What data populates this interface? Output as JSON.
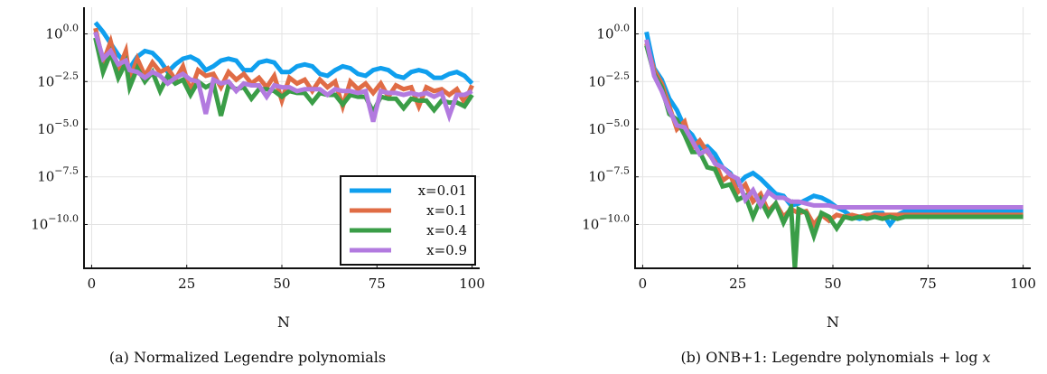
{
  "colors": {
    "x=0.01": "#0f9fee",
    "x=0.1": "#e06c45",
    "x=0.4": "#3a9d47",
    "x=0.9": "#b27adf",
    "grid": "#e3e3e3",
    "axis": "#111111"
  },
  "captions": {
    "a": "(a) Normalized Legendre polynomials",
    "b": "(b) ONB+1: Legendre polynomials + log x"
  },
  "chart_data": [
    {
      "type": "line",
      "panel": "a",
      "xlabel": "N",
      "ylabel": "",
      "yscale": "log10",
      "xlim": [
        0,
        100
      ],
      "ylim": [
        -12.3,
        1.4
      ],
      "x_ticks": [
        0,
        25,
        50,
        75,
        100
      ],
      "y_ticks": [
        {
          "base": "10",
          "exp": "0.0",
          "value": 0.0
        },
        {
          "base": "10",
          "exp": "−2.5",
          "value": -2.5
        },
        {
          "base": "10",
          "exp": "−5.0",
          "value": -5.0
        },
        {
          "base": "10",
          "exp": "−7.5",
          "value": -7.5
        },
        {
          "base": "10",
          "exp": "−10.0",
          "value": -10.0
        }
      ],
      "grid": true,
      "legend": {
        "placement": "bottom-right",
        "entries": [
          "x=0.01",
          "x=0.1",
          "x=0.4",
          "x=0.9"
        ]
      },
      "series": [
        {
          "name": "x=0.01",
          "x": [
            1,
            3,
            5,
            7,
            9,
            10,
            12,
            14,
            16,
            18,
            20,
            22,
            24,
            26,
            28,
            30,
            32,
            34,
            36,
            38,
            40,
            42,
            44,
            46,
            48,
            50,
            52,
            54,
            56,
            58,
            60,
            62,
            64,
            66,
            68,
            70,
            72,
            74,
            76,
            78,
            80,
            82,
            84,
            86,
            88,
            90,
            92,
            94,
            96,
            98,
            100
          ],
          "y": [
            0.6,
            0.1,
            -0.5,
            -1.1,
            -1.6,
            -1.8,
            -1.2,
            -0.9,
            -1.0,
            -1.4,
            -2.0,
            -1.6,
            -1.3,
            -1.2,
            -1.4,
            -1.9,
            -1.7,
            -1.4,
            -1.3,
            -1.4,
            -1.9,
            -1.9,
            -1.5,
            -1.4,
            -1.5,
            -2.0,
            -2.0,
            -1.7,
            -1.6,
            -1.7,
            -2.1,
            -2.2,
            -1.9,
            -1.7,
            -1.8,
            -2.1,
            -2.2,
            -1.9,
            -1.8,
            -1.9,
            -2.2,
            -2.3,
            -2.0,
            -1.9,
            -2.0,
            -2.3,
            -2.3,
            -2.1,
            -2.0,
            -2.2,
            -2.6
          ]
        },
        {
          "name": "x=0.1",
          "x": [
            1,
            3,
            5,
            7,
            9,
            10,
            12,
            14,
            16,
            18,
            20,
            22,
            24,
            26,
            28,
            30,
            32,
            34,
            36,
            38,
            40,
            42,
            44,
            46,
            48,
            50,
            52,
            54,
            56,
            58,
            60,
            62,
            64,
            66,
            68,
            70,
            72,
            74,
            76,
            78,
            80,
            82,
            84,
            86,
            88,
            90,
            92,
            94,
            96,
            98,
            100
          ],
          "y": [
            0.3,
            -1.5,
            -0.4,
            -1.9,
            -0.9,
            -2.4,
            -1.3,
            -2.2,
            -1.5,
            -2.0,
            -1.8,
            -2.4,
            -1.7,
            -3.0,
            -1.9,
            -2.2,
            -2.1,
            -2.8,
            -2.0,
            -2.4,
            -2.1,
            -2.6,
            -2.3,
            -2.8,
            -2.2,
            -3.5,
            -2.3,
            -2.6,
            -2.4,
            -3.0,
            -2.4,
            -2.8,
            -2.5,
            -3.8,
            -2.5,
            -2.9,
            -2.6,
            -3.1,
            -2.6,
            -3.3,
            -2.7,
            -2.9,
            -2.8,
            -3.8,
            -2.8,
            -3.0,
            -2.9,
            -3.2,
            -2.9,
            -3.6,
            -2.7
          ]
        },
        {
          "name": "x=0.4",
          "x": [
            1,
            3,
            5,
            7,
            9,
            10,
            12,
            14,
            16,
            18,
            20,
            22,
            24,
            26,
            28,
            30,
            32,
            34,
            36,
            38,
            40,
            42,
            44,
            46,
            48,
            50,
            52,
            54,
            56,
            58,
            60,
            62,
            64,
            66,
            68,
            70,
            72,
            74,
            76,
            78,
            80,
            82,
            84,
            86,
            88,
            90,
            92,
            94,
            96,
            98,
            100
          ],
          "y": [
            -0.2,
            -2.0,
            -1.0,
            -2.3,
            -1.5,
            -2.8,
            -1.8,
            -2.5,
            -2.0,
            -3.0,
            -2.2,
            -2.6,
            -2.4,
            -3.2,
            -2.5,
            -2.8,
            -2.6,
            -4.3,
            -2.7,
            -2.9,
            -2.8,
            -3.4,
            -2.9,
            -2.9,
            -3.0,
            -3.3,
            -3.0,
            -3.1,
            -3.1,
            -3.6,
            -3.1,
            -3.2,
            -3.2,
            -3.7,
            -3.2,
            -3.3,
            -3.3,
            -4.1,
            -3.3,
            -3.4,
            -3.4,
            -3.9,
            -3.4,
            -3.5,
            -3.5,
            -4.0,
            -3.5,
            -3.6,
            -3.6,
            -3.8,
            -3.2
          ]
        },
        {
          "name": "x=0.9",
          "x": [
            1,
            3,
            5,
            7,
            9,
            10,
            12,
            14,
            16,
            18,
            20,
            22,
            24,
            26,
            28,
            30,
            32,
            34,
            36,
            38,
            40,
            42,
            44,
            46,
            48,
            50,
            52,
            54,
            56,
            58,
            60,
            62,
            64,
            66,
            68,
            70,
            72,
            74,
            76,
            78,
            80,
            82,
            84,
            86,
            88,
            90,
            92,
            94,
            96,
            98,
            100
          ],
          "y": [
            0.1,
            -1.3,
            -0.9,
            -1.6,
            -1.4,
            -1.9,
            -2.0,
            -2.3,
            -2.0,
            -2.2,
            -2.6,
            -2.3,
            -2.1,
            -2.4,
            -2.5,
            -4.2,
            -2.4,
            -2.6,
            -2.5,
            -3.0,
            -2.6,
            -2.7,
            -2.7,
            -3.3,
            -2.7,
            -2.8,
            -2.8,
            -3.0,
            -2.9,
            -2.9,
            -2.9,
            -3.2,
            -2.9,
            -3.0,
            -3.0,
            -3.1,
            -3.0,
            -4.6,
            -3.0,
            -3.1,
            -3.1,
            -3.2,
            -3.1,
            -3.2,
            -3.1,
            -3.3,
            -3.1,
            -4.3,
            -3.2,
            -3.2,
            -3.0
          ]
        }
      ]
    },
    {
      "type": "line",
      "panel": "b",
      "xlabel": "N",
      "ylabel": "",
      "yscale": "log10",
      "xlim": [
        0,
        100
      ],
      "ylim": [
        -12.3,
        1.4
      ],
      "x_ticks": [
        0,
        25,
        50,
        75,
        100
      ],
      "y_ticks": [
        {
          "base": "10",
          "exp": "0.0",
          "value": 0.0
        },
        {
          "base": "10",
          "exp": "−2.5",
          "value": -2.5
        },
        {
          "base": "10",
          "exp": "−5.0",
          "value": -5.0
        },
        {
          "base": "10",
          "exp": "−7.5",
          "value": -7.5
        },
        {
          "base": "10",
          "exp": "−10.0",
          "value": -10.0
        }
      ],
      "grid": true,
      "series": [
        {
          "name": "x=0.01",
          "x": [
            1,
            3,
            5,
            7,
            9,
            11,
            13,
            15,
            17,
            19,
            21,
            23,
            25,
            27,
            29,
            31,
            33,
            35,
            37,
            39,
            41,
            43,
            45,
            47,
            49,
            51,
            53,
            55,
            57,
            59,
            61,
            63,
            65,
            67,
            69,
            71,
            73,
            75,
            80,
            85,
            90,
            95,
            100
          ],
          "y": [
            0.1,
            -1.8,
            -2.4,
            -3.4,
            -4.0,
            -4.9,
            -5.3,
            -6.0,
            -5.9,
            -6.3,
            -7.0,
            -7.3,
            -7.9,
            -7.5,
            -7.3,
            -7.6,
            -8.0,
            -8.4,
            -8.5,
            -9.0,
            -8.9,
            -8.7,
            -8.5,
            -8.6,
            -8.8,
            -9.1,
            -9.3,
            -9.6,
            -9.7,
            -9.6,
            -9.4,
            -9.4,
            -10.0,
            -9.5,
            -9.3,
            -9.3,
            -9.3,
            -9.3,
            -9.3,
            -9.3,
            -9.3,
            -9.3,
            -9.3
          ]
        },
        {
          "name": "x=0.1",
          "x": [
            1,
            3,
            5,
            7,
            9,
            11,
            13,
            15,
            17,
            19,
            21,
            23,
            25,
            27,
            29,
            31,
            33,
            35,
            37,
            39,
            41,
            43,
            45,
            47,
            49,
            51,
            53,
            55,
            57,
            59,
            61,
            63,
            65,
            67,
            69,
            71,
            73,
            75,
            80,
            85,
            90,
            95,
            100
          ],
          "y": [
            -0.5,
            -1.9,
            -2.6,
            -3.8,
            -5.0,
            -4.6,
            -6.0,
            -5.6,
            -6.2,
            -6.7,
            -7.7,
            -7.4,
            -8.3,
            -7.9,
            -8.8,
            -8.4,
            -9.3,
            -8.9,
            -9.6,
            -9.2,
            -9.4,
            -9.3,
            -10.0,
            -9.5,
            -9.8,
            -9.5,
            -9.6,
            -9.5,
            -9.6,
            -9.5,
            -9.5,
            -9.5,
            -9.5,
            -9.5,
            -9.5,
            -9.5,
            -9.5,
            -9.5,
            -9.5,
            -9.5,
            -9.5,
            -9.5,
            -9.5
          ]
        },
        {
          "name": "x=0.4",
          "x": [
            1,
            3,
            5,
            7,
            9,
            11,
            13,
            15,
            17,
            19,
            21,
            23,
            25,
            27,
            29,
            31,
            33,
            35,
            37,
            39,
            40,
            41,
            43,
            45,
            47,
            49,
            51,
            53,
            55,
            57,
            59,
            61,
            63,
            65,
            67,
            69,
            71,
            73,
            75,
            80,
            85,
            90,
            95,
            100
          ],
          "y": [
            -0.6,
            -2.1,
            -2.8,
            -4.2,
            -4.5,
            -5.3,
            -6.2,
            -6.2,
            -7.0,
            -7.1,
            -8.0,
            -7.9,
            -8.7,
            -8.5,
            -9.6,
            -8.7,
            -9.5,
            -8.9,
            -9.9,
            -9.1,
            -12.3,
            -9.2,
            -9.4,
            -10.6,
            -9.4,
            -9.6,
            -10.2,
            -9.6,
            -9.7,
            -9.6,
            -9.7,
            -9.6,
            -9.7,
            -9.6,
            -9.7,
            -9.6,
            -9.6,
            -9.6,
            -9.6,
            -9.6,
            -9.6,
            -9.6,
            -9.6,
            -9.6
          ]
        },
        {
          "name": "x=0.9",
          "x": [
            1,
            3,
            5,
            7,
            9,
            11,
            13,
            15,
            17,
            19,
            21,
            23,
            25,
            27,
            29,
            31,
            33,
            35,
            37,
            39,
            41,
            43,
            45,
            47,
            49,
            51,
            53,
            55,
            57,
            59,
            61,
            63,
            65,
            67,
            69,
            71,
            73,
            75,
            80,
            85,
            90,
            95,
            100
          ],
          "y": [
            -0.3,
            -2.2,
            -3.0,
            -4.0,
            -4.8,
            -4.9,
            -5.6,
            -6.3,
            -6.1,
            -6.8,
            -7.0,
            -7.4,
            -7.6,
            -8.7,
            -8.2,
            -9.0,
            -8.3,
            -8.6,
            -8.6,
            -8.8,
            -8.8,
            -8.9,
            -9.0,
            -9.0,
            -9.0,
            -9.1,
            -9.1,
            -9.1,
            -9.1,
            -9.1,
            -9.1,
            -9.1,
            -9.1,
            -9.1,
            -9.1,
            -9.1,
            -9.1,
            -9.1,
            -9.1,
            -9.1,
            -9.1,
            -9.1,
            -9.1
          ]
        }
      ]
    }
  ]
}
